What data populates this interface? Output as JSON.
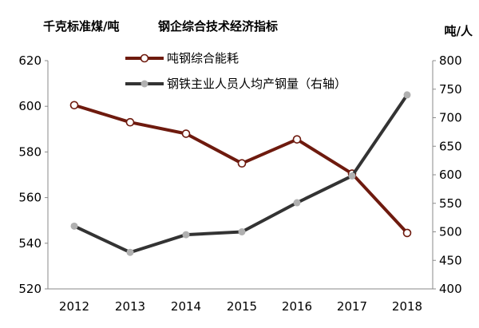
{
  "chart_data": {
    "type": "line",
    "title": "钢企综合技术经济指标",
    "ylabel": "千克标准煤/吨",
    "y2label": "吨/人",
    "categories": [
      "2012",
      "2013",
      "2014",
      "2015",
      "2016",
      "2017",
      "2018"
    ],
    "ylim": [
      520,
      620
    ],
    "y_ticks": [
      "520",
      "540",
      "560",
      "580",
      "600",
      "620"
    ],
    "y2lim": [
      400,
      800
    ],
    "y2_ticks": [
      "400",
      "450",
      "500",
      "550",
      "600",
      "650",
      "700",
      "750",
      "800"
    ],
    "grid": false,
    "legend_position": "top-center",
    "series": [
      {
        "name": "吨钢综合能耗",
        "axis": "left",
        "color": "#6e1a0e",
        "marker_fill": "#ffffff",
        "values": [
          600.5,
          593,
          588,
          575,
          585.5,
          570.5,
          544.5
        ]
      },
      {
        "name": "钢铁主业人员人均产钢量（右轴）",
        "axis": "right",
        "color": "#333333",
        "marker_fill": "#b0b0b0",
        "values": [
          510,
          464,
          495,
          500,
          551,
          598,
          740
        ]
      }
    ]
  }
}
